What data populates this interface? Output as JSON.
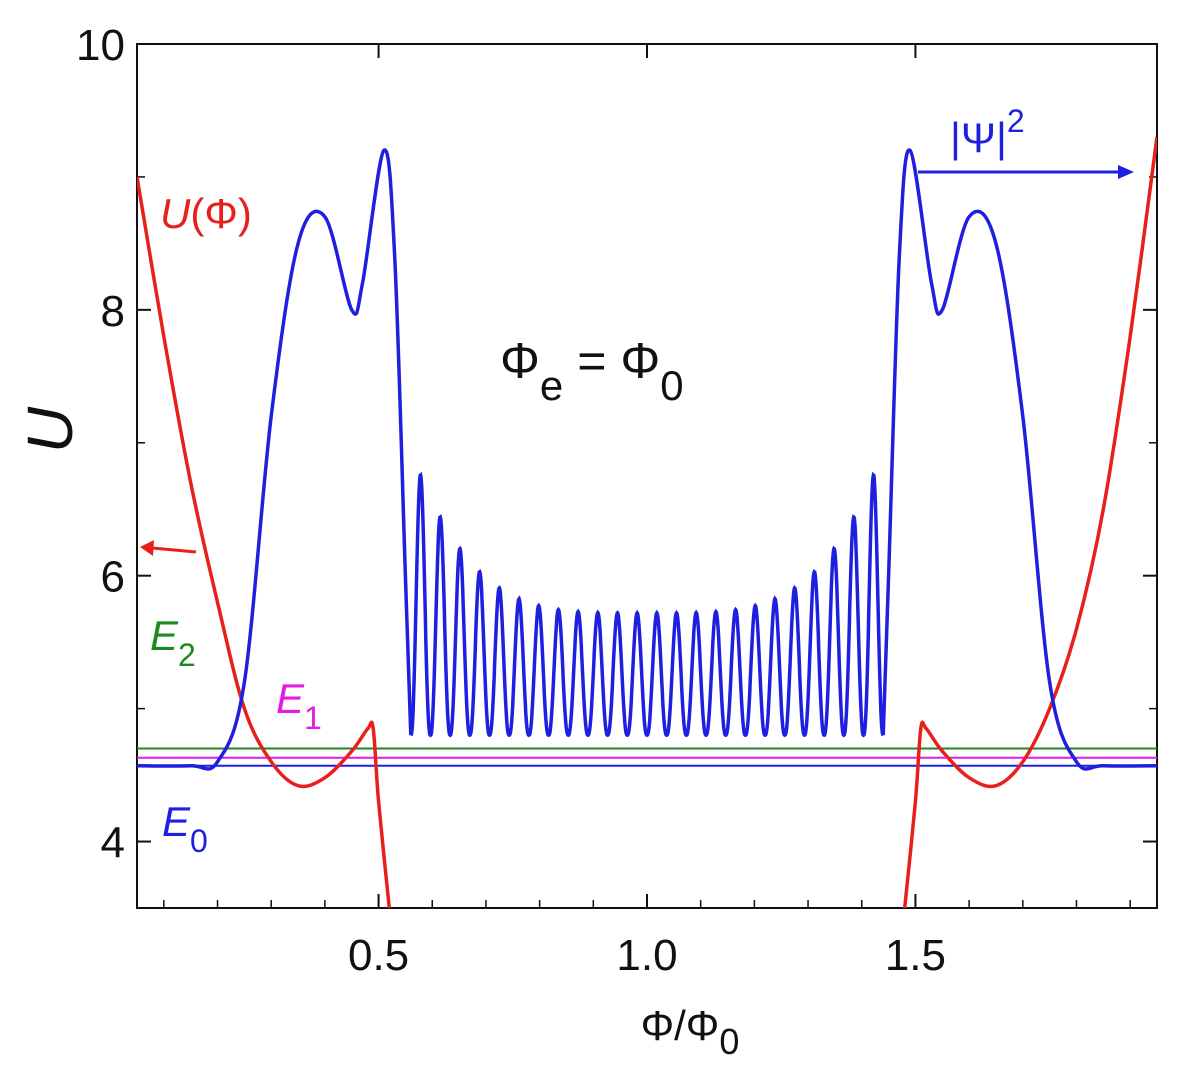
{
  "chart_data": {
    "type": "line",
    "xlabel_main": "Φ/Φ",
    "xlabel_sub": "0",
    "ylabel": "U",
    "xlim": [
      0.05,
      1.95
    ],
    "ylim": [
      3.5,
      10.0
    ],
    "x_ticks": [
      {
        "value": 0.5,
        "label": "0.5"
      },
      {
        "value": 1.0,
        "label": "1.0"
      },
      {
        "value": 1.5,
        "label": "1.5"
      }
    ],
    "y_ticks": [
      {
        "value": 4,
        "label": "4"
      },
      {
        "value": 6,
        "label": "6"
      },
      {
        "value": 8,
        "label": "8"
      },
      {
        "value": 10,
        "label": "10"
      }
    ],
    "grid": false,
    "series": [
      {
        "name": "U(Φ)",
        "color": "#e8201c",
        "segments": [
          [
            [
              0.05,
              9.0
            ],
            [
              0.1,
              7.8
            ],
            [
              0.15,
              6.7
            ],
            [
              0.2,
              5.8
            ],
            [
              0.25,
              5.0
            ],
            [
              0.3,
              4.6
            ],
            [
              0.35,
              4.42
            ],
            [
              0.4,
              4.48
            ],
            [
              0.45,
              4.68
            ],
            [
              0.48,
              4.85
            ],
            [
              0.49,
              4.85
            ],
            [
              0.5,
              4.3
            ],
            [
              0.52,
              3.5
            ]
          ],
          [
            [
              1.48,
              3.5
            ],
            [
              1.5,
              4.3
            ],
            [
              1.51,
              4.85
            ],
            [
              1.52,
              4.85
            ],
            [
              1.55,
              4.68
            ],
            [
              1.6,
              4.48
            ],
            [
              1.65,
              4.42
            ],
            [
              1.7,
              4.6
            ],
            [
              1.75,
              5.0
            ],
            [
              1.8,
              5.6
            ],
            [
              1.85,
              6.5
            ],
            [
              1.9,
              7.8
            ],
            [
              1.95,
              9.3
            ]
          ]
        ]
      },
      {
        "name": "|Ψ|²",
        "color": "#1f1fe0",
        "segments": [
          [
            [
              0.05,
              4.57
            ],
            [
              0.15,
              4.57
            ],
            [
              0.2,
              4.6
            ],
            [
              0.25,
              5.2
            ],
            [
              0.3,
              7.2
            ],
            [
              0.35,
              8.5
            ],
            [
              0.4,
              8.7
            ],
            [
              0.45,
              8.0
            ],
            [
              0.47,
              8.2
            ],
            [
              0.51,
              9.2
            ],
            [
              0.53,
              8.4
            ],
            [
              0.55,
              6.0
            ],
            [
              0.56,
              4.8
            ]
          ],
          [
            [
              1.44,
              4.8
            ],
            [
              1.45,
              6.0
            ],
            [
              1.47,
              8.4
            ],
            [
              1.49,
              9.2
            ],
            [
              1.53,
              8.2
            ],
            [
              1.55,
              8.0
            ],
            [
              1.6,
              8.7
            ],
            [
              1.65,
              8.5
            ],
            [
              1.7,
              7.2
            ],
            [
              1.75,
              5.2
            ],
            [
              1.8,
              4.6
            ],
            [
              1.85,
              4.57
            ],
            [
              1.95,
              4.57
            ]
          ]
        ],
        "oscillation": {
          "x_range": [
            0.56,
            1.44
          ],
          "peaks": 24,
          "trough": 4.8,
          "peak_edge": 6.95,
          "peak_center": 5.72
        }
      }
    ],
    "levels": [
      {
        "name": "E_0",
        "label_main": "E",
        "label_sub": "0",
        "value": 4.57,
        "color": "#1f1fe0"
      },
      {
        "name": "E_1",
        "label_main": "E",
        "label_sub": "1",
        "value": 4.63,
        "color": "#e21ce2"
      },
      {
        "name": "E_2",
        "label_main": "E",
        "label_sub": "2",
        "value": 4.7,
        "color": "#1c8a1c"
      }
    ],
    "annotations": {
      "u_label_italic": "U",
      "u_label_rest": "(Φ)",
      "psi_label": "|Ψ|",
      "psi_sup": "2",
      "phi_e_main": "Φ",
      "phi_e_sub": "e",
      "phi_e_eq": "= Φ",
      "phi_e_sub0": "0"
    }
  }
}
